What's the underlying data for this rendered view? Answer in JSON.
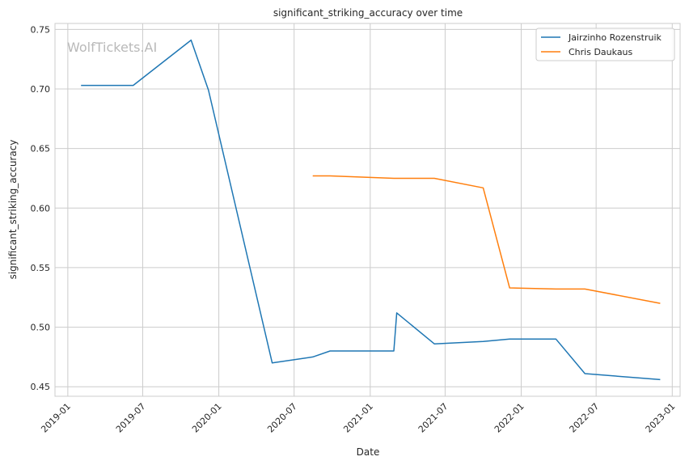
{
  "chart_data": {
    "type": "line",
    "title": "significant_striking_accuracy over time",
    "xlabel": "Date",
    "ylabel": "significant_striking_accuracy",
    "watermark": "WolfTickets.AI",
    "x_ticks": [
      "2019-01",
      "2019-07",
      "2020-01",
      "2020-07",
      "2021-01",
      "2021-07",
      "2022-01",
      "2022-07",
      "2023-01"
    ],
    "y_ticks": [
      "0.45",
      "0.50",
      "0.55",
      "0.60",
      "0.65",
      "0.70",
      "0.75"
    ],
    "xlim": [
      "2018-12-01",
      "2023-01-20"
    ],
    "ylim": [
      0.442,
      0.755
    ],
    "grid": true,
    "legend_position": "top-right",
    "series": [
      {
        "name": "Jairzinho Rozenstruik",
        "color": "#1f77b4",
        "points": [
          [
            "2019-02-02",
            0.703
          ],
          [
            "2019-06-08",
            0.703
          ],
          [
            "2019-10-26",
            0.741
          ],
          [
            "2019-12-07",
            0.699
          ],
          [
            "2020-05-09",
            0.47
          ],
          [
            "2020-08-15",
            0.475
          ],
          [
            "2020-09-26",
            0.48
          ],
          [
            "2021-02-27",
            0.48
          ],
          [
            "2021-03-06",
            0.512
          ],
          [
            "2021-06-05",
            0.486
          ],
          [
            "2021-10-01",
            0.488
          ],
          [
            "2021-12-04",
            0.49
          ],
          [
            "2022-03-26",
            0.49
          ],
          [
            "2022-06-04",
            0.461
          ],
          [
            "2022-12-03",
            0.456
          ]
        ]
      },
      {
        "name": "Chris Daukaus",
        "color": "#ff7f0e",
        "points": [
          [
            "2020-08-15",
            0.627
          ],
          [
            "2020-09-26",
            0.627
          ],
          [
            "2021-02-27",
            0.625
          ],
          [
            "2021-06-05",
            0.625
          ],
          [
            "2021-10-01",
            0.617
          ],
          [
            "2021-12-04",
            0.533
          ],
          [
            "2022-03-26",
            0.532
          ],
          [
            "2022-06-04",
            0.532
          ],
          [
            "2022-12-03",
            0.52
          ]
        ]
      }
    ]
  }
}
